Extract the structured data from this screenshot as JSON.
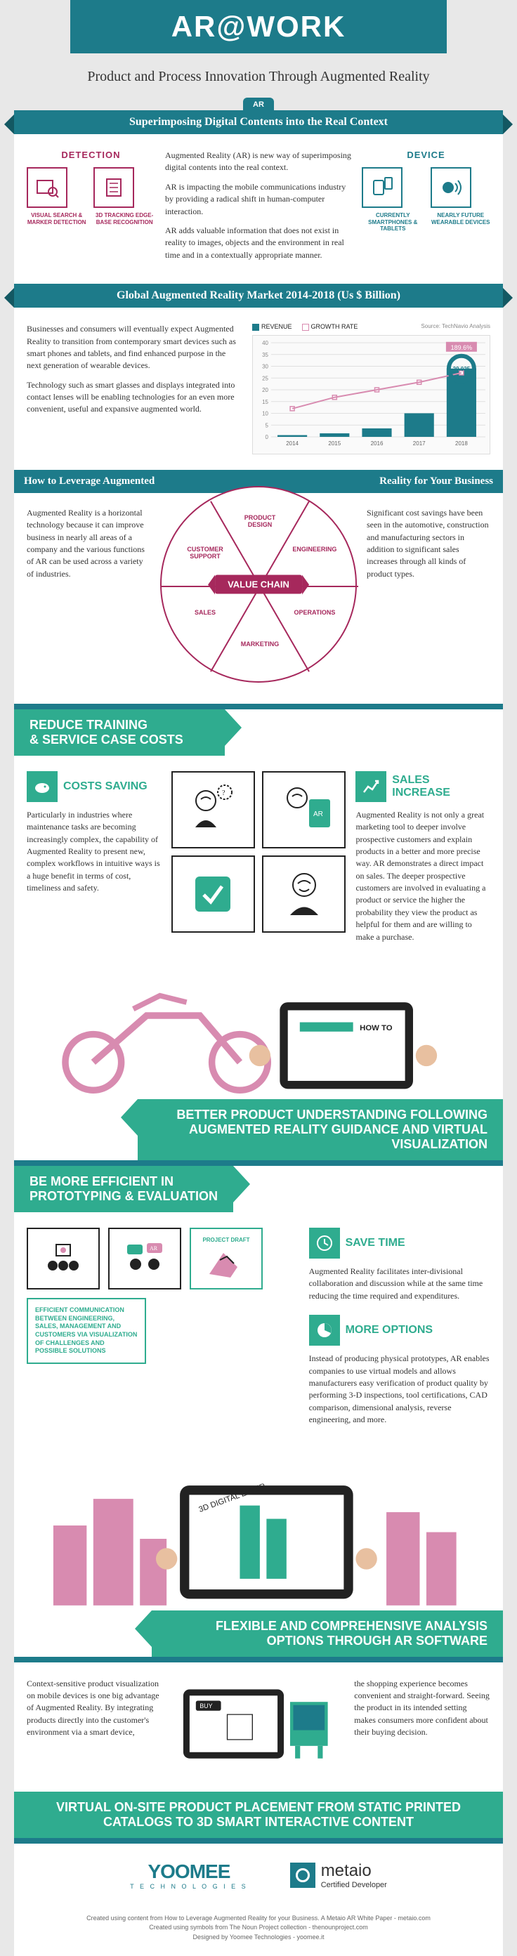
{
  "title": "AR@WORK",
  "subtitle": "Product and Process Innovation Through Augmented Reality",
  "badge": "AR",
  "ribbons": {
    "superimpose": "Superimposing Digital Contents into the Real Context",
    "market": "Global Augmented Reality Market 2014-2018 (Us $ Billion)",
    "leverage_left": "How to Leverage Augmented",
    "leverage_right": "Reality for Your Business"
  },
  "detection": {
    "header": "DETECTION",
    "items": [
      {
        "label": "VISUAL SEARCH & MARKER DETECTION"
      },
      {
        "label": "3D TRACKING EDGE-BASE RECOGNITION"
      }
    ]
  },
  "device": {
    "header": "DEVICE",
    "items": [
      {
        "label": "CURRENTLY SMARTPHONES & TABLETS"
      },
      {
        "label": "NEARLY FUTURE WEARABLE DEVICES"
      }
    ]
  },
  "intro": {
    "p1": "Augmented Reality (AR) is new way of superimposing digital contents into the real context.",
    "p2": "AR is impacting the mobile communications industry by providing a radical shift in human-computer interaction.",
    "p3": "AR adds valuable information that does not exist in reality to images, objects and the environment in real time and in a contextually appropriate manner."
  },
  "market": {
    "p1": "Businesses and consumers will eventually expect Augmented Reality to transition from contemporary smart devices such as smart phones and tablets, and find enhanced purpose in the next generation of wearable devices.",
    "p2": "Technology such as smart glasses and displays integrated into contact lenses will be enabling technologies for an even more convenient, useful and expansive augmented world.",
    "legend_revenue": "REVENUE",
    "legend_growth": "GROWTH RATE",
    "source": "Source: TechNavio Analysis",
    "years": [
      "2014",
      "2015",
      "2016",
      "2017",
      "2018"
    ],
    "revenue": [
      0.735,
      1.498,
      3.595,
      10.025,
      29.025
    ],
    "growth_labels": [
      "",
      "",
      "",
      "",
      "189.6%"
    ],
    "top_value_label": "29.025",
    "y_ticks": [
      0,
      5,
      10,
      15,
      20,
      25,
      30,
      35,
      40
    ],
    "bar_color": "#1d7b8a",
    "line_color": "#d88bb0",
    "grid_color": "#e0e0e0",
    "bg": "#fafafa",
    "highlight_color": "#d88bb0",
    "bar_labels": [
      "0.735",
      "1.498",
      "3.595",
      "10.025",
      ""
    ]
  },
  "value_chain": {
    "center": "VALUE CHAIN",
    "segments": [
      "PRODUCT DESIGN",
      "ENGINEERING",
      "OPERATIONS",
      "MARKETING",
      "SALES",
      "CUSTOMER SUPPORT"
    ],
    "color": "#a6285c"
  },
  "leverage": {
    "left": "Augmented Reality is a horizontal technology because it can improve business in nearly all areas of a company and the various functions of AR can be used across a variety of industries.",
    "right": "Significant cost savings have been seen in the automotive, construction and manufacturing sectors in addition to significant sales increases through all kinds of product types."
  },
  "green": {
    "reduce": "REDUCE TRAINING & SERVICE CASE COSTS",
    "better": "BETTER PRODUCT UNDERSTANDING FOLLOWING AUGMENTED REALITY GUIDANCE AND VIRTUAL VISUALIZATION",
    "efficient": "BE MORE EFFICIENT IN PROTOTYPING & EVALUATION",
    "flexible": "FLEXIBLE AND COMPREHENSIVE ANALYSIS OPTIONS THROUGH AR SOFTWARE",
    "virtual": "VIRTUAL ON-SITE PRODUCT PLACEMENT FROM STATIC PRINTED CATALOGS TO 3D SMART INTERACTIVE CONTENT"
  },
  "costs": {
    "title": "COSTS SAVING",
    "text": "Particularly in industries where maintenance tasks are becoming increasingly complex, the capability of Augmented Reality to present new, complex workflows in intuitive ways is a huge benefit in terms of cost, timeliness and safety."
  },
  "sales": {
    "title": "SALES INCREASE",
    "text": "Augmented Reality is not only a great marketing tool to deeper involve prospective customers and explain products in a better and more precise way. AR demonstrates a direct impact on sales. The deeper prospective customers are involved in evaluating a product or service the higher the probability they view the product as helpful for them and are willing to make a purchase."
  },
  "save_time": {
    "title": "SAVE TIME",
    "text": "Augmented Reality facilitates inter-divisional collaboration and discussion while at the same time reducing the time required and expenditures."
  },
  "more_options": {
    "title": "MORE OPTIONS",
    "text": "Instead of producing physical prototypes, AR enables companies to use virtual models and allows manufacturers easy verification of product quality by performing 3-D inspections, tool certifications, CAD comparison, dimensional analysis, reverse engineering, and more."
  },
  "efficient_box": "EFFICIENT COMMUNICATION BETWEEN ENGINEERING, SALES, MANAGEMENT AND CUSTOMERS VIA VISUALIZATION OF CHALLENGES AND POSSIBLE SOLUTIONS",
  "project_draft": "PROJECT DRAFT",
  "context": {
    "left": "Context-sensitive product visualization on mobile devices is one big advantage of Augmented Reality. By integrating products directly into the customer's environment via a smart device,",
    "right": "the shopping experience becomes convenient and straight-forward. Seeing the product in its intended setting makes consumers more confident about their buying decision."
  },
  "logos": {
    "yoomee": "YOOMEE",
    "yoomee_sub": "T E C H N O L O G I E S",
    "metaio": "metaio",
    "metaio_sub": "Certified Developer"
  },
  "credits": {
    "l1": "Created using content from How to Leverage Augmented Reality for your Business. A Metaio AR White Paper - metaio.com",
    "l2": "Created using symbols from The Noun Project collection - thenounproject.com",
    "l3": "Designed by Yoomee Technologies - yoomee.it"
  },
  "colors": {
    "teal": "#1d7b8a",
    "dark_teal": "#135862",
    "green": "#2fac8f",
    "magenta": "#a6285c",
    "pink": "#d88bb0",
    "grey_bg": "#e8e8e8"
  }
}
